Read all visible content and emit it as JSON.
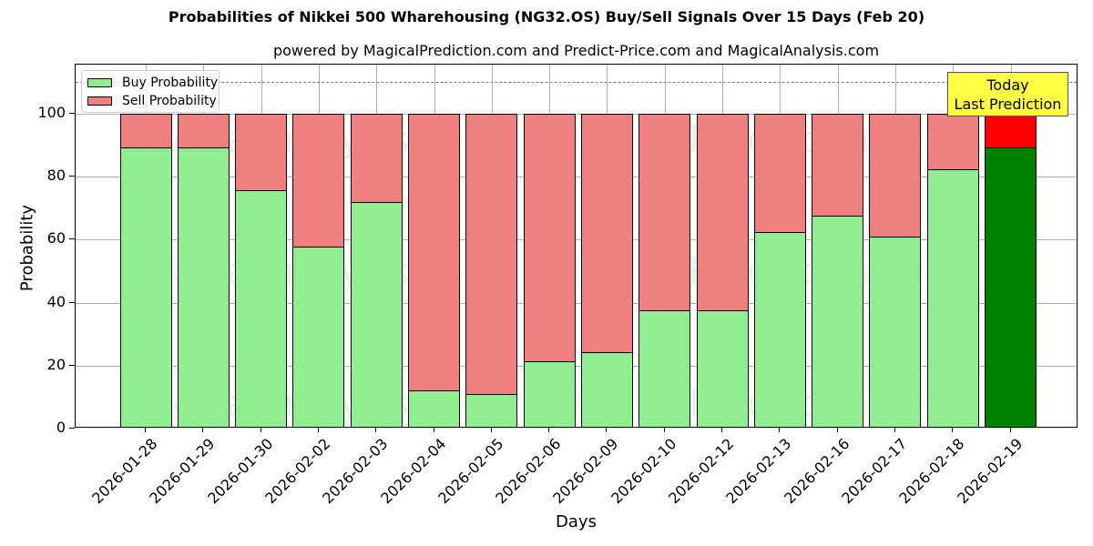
{
  "chart_data": {
    "type": "bar",
    "stacked": true,
    "title": "Probabilities of Nikkei 500 Wharehousing (NG32.OS) Buy/Sell Signals Over 15 Days (Feb 20)",
    "subtitle": "powered by MagicalPrediction.com and Predict-Price.com and MagicalAnalysis.com",
    "xlabel": "Days",
    "ylabel": "Probability",
    "ylim": [
      0,
      115
    ],
    "yticks": [
      0,
      20,
      40,
      60,
      80,
      100
    ],
    "grid": true,
    "legend_position": "upper left",
    "reference_line": {
      "y": 110,
      "style": "dashed",
      "color": "#808080"
    },
    "categories": [
      "2026-01-28",
      "2026-01-29",
      "2026-01-30",
      "2026-02-02",
      "2026-02-03",
      "2026-02-04",
      "2026-02-05",
      "2026-02-06",
      "2026-02-09",
      "2026-02-10",
      "2026-02-12",
      "2026-02-13",
      "2026-02-16",
      "2026-02-17",
      "2026-02-18",
      "2026-02-19"
    ],
    "series": [
      {
        "name": "Buy Probability",
        "color": "#90ee90",
        "values": [
          89.3,
          89.3,
          75.7,
          57.8,
          72.0,
          12.1,
          11.0,
          21.4,
          24.3,
          37.6,
          37.6,
          62.4,
          67.6,
          61.0,
          82.4,
          89.3
        ]
      },
      {
        "name": "Sell Probability",
        "color": "#f08080",
        "values": [
          10.7,
          10.7,
          24.3,
          42.2,
          28.0,
          87.9,
          89.0,
          78.6,
          75.7,
          62.4,
          62.4,
          37.6,
          32.4,
          39.0,
          17.6,
          10.7
        ]
      }
    ],
    "highlight": {
      "index": 15,
      "buy_color": "#008000",
      "sell_color": "#ff0000"
    },
    "annotation": {
      "text": "Today\nLast Prediction",
      "line1": "Today",
      "line2": "Last Prediction",
      "background": "#ffff44"
    },
    "watermarks": [
      "MagicalAnalysis.com",
      "MagicalPrediction.com"
    ]
  }
}
